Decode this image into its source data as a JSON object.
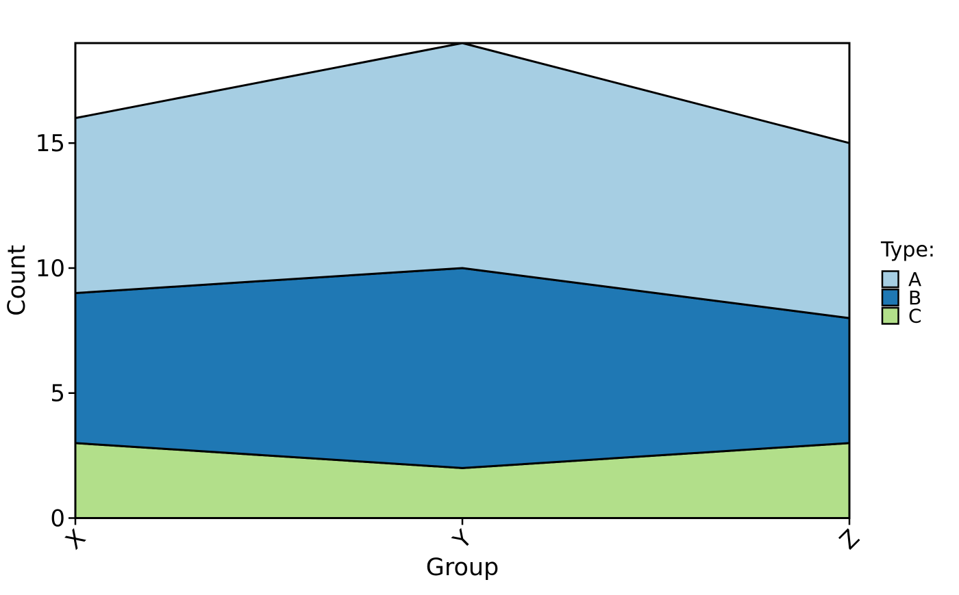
{
  "canvas": {
    "background": "#ffffff",
    "text_color": "#000000"
  },
  "chart_data": {
    "type": "area",
    "stacked": true,
    "title": "",
    "xlabel": "Group",
    "ylabel": "Count",
    "categories": [
      "X",
      "Y",
      "Z"
    ],
    "series": [
      {
        "name": "A",
        "values": [
          7,
          9,
          7
        ],
        "color": "#a6cee3"
      },
      {
        "name": "B",
        "values": [
          6,
          8,
          5
        ],
        "color": "#1f78b4"
      },
      {
        "name": "C",
        "values": [
          3,
          2,
          3
        ],
        "color": "#b2df8a"
      }
    ],
    "stack_order_bottom_to_top": [
      "C",
      "B",
      "A"
    ],
    "stacked_totals": [
      16,
      19,
      15
    ],
    "ylim": [
      0,
      19
    ],
    "yticks": [
      0,
      5,
      10,
      15
    ],
    "xtick_rotation_deg": -45,
    "grid": false,
    "outline_color": "#000000",
    "frame_color": "#000000",
    "legend": {
      "title": "Type:",
      "position": "right",
      "entries": [
        "A",
        "B",
        "C"
      ]
    }
  }
}
